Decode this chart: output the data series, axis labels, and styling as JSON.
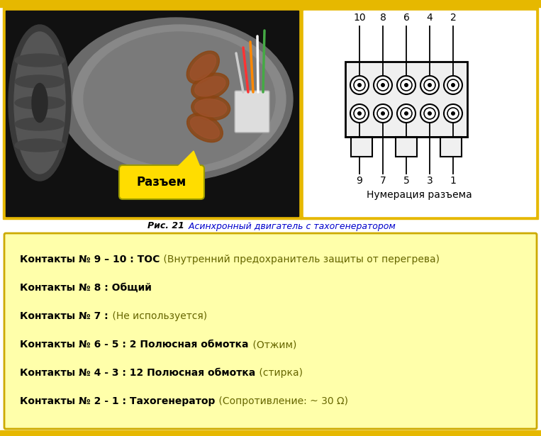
{
  "fig_width": 7.63,
  "fig_height": 6.15,
  "dpi": 100,
  "bg_color": "#ffffff",
  "yellow_border_color": "#e6b800",
  "caption_bold": "Рис. 21",
  "caption_italic": " Асинхронный двигатель с тахогенератором",
  "caption_bold_color": "#000000",
  "caption_italic_color": "#0000cc",
  "info_box_bg": "#ffffaa",
  "info_box_border": "#ccaa00",
  "info_lines": [
    {
      "bold": "Контакты № 9 – 10 : ТОС",
      "normal": " (Внутренний предохранитель защиты от перегрева)"
    },
    {
      "bold": "Контакты № 8 : Общий",
      "normal": ""
    },
    {
      "bold": "Контакты № 7 :",
      "normal": " (Не используется)"
    },
    {
      "bold": "Контакты № 6 - 5 : 2 Полюсная обмотка",
      "normal": " (Отжим)"
    },
    {
      "bold": "Контакты № 4 - 3 : 12 Полюсная обмотка",
      "normal": " (стирка)"
    },
    {
      "bold": "Контакты № 2 - 1 : Тахогенератор",
      "normal": " (Сопротивление: ~ 30 Ω)"
    }
  ],
  "diagram_label": "Нумерация разъема",
  "razem_label": "Разъем",
  "top_numbers": [
    "10",
    "8",
    "6",
    "4",
    "2"
  ],
  "bottom_numbers": [
    "9",
    "7",
    "5",
    "3",
    "1"
  ],
  "text_bold_color": "#000000",
  "text_normal_color": "#666600",
  "connector_bg": "#ffdd00",
  "photo_border_color": "#e6b800",
  "diag_border_color": "#e6b800"
}
